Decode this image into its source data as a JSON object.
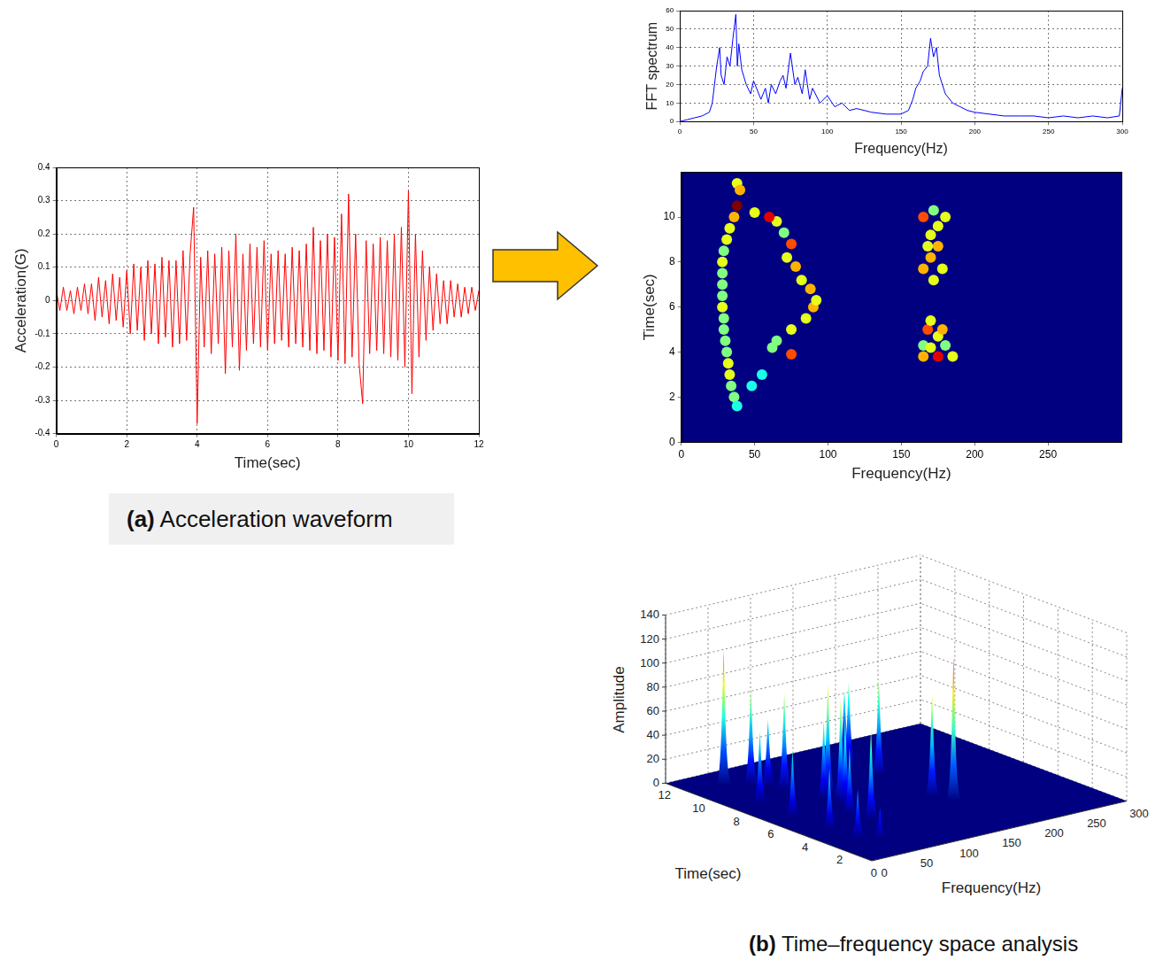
{
  "chart_data": [
    {
      "type": "line",
      "x_label": "Time(sec)",
      "y_label": "Acceleration(G)",
      "color": "#ff0000",
      "grid": true,
      "xlim": [
        0,
        12
      ],
      "xticks": [
        0,
        2,
        4,
        6,
        8,
        10,
        12
      ],
      "ylim": [
        -0.4,
        0.4
      ],
      "yticks": [
        -0.4,
        -0.3,
        -0.2,
        -0.1,
        0,
        0.1,
        0.2,
        0.3,
        0.4
      ],
      "x": [
        0,
        0.1,
        0.2,
        0.3,
        0.4,
        0.5,
        0.6,
        0.7,
        0.8,
        0.9,
        1,
        1.1,
        1.2,
        1.3,
        1.4,
        1.5,
        1.6,
        1.7,
        1.8,
        1.9,
        2,
        2.1,
        2.2,
        2.3,
        2.4,
        2.5,
        2.6,
        2.7,
        2.8,
        2.9,
        3,
        3.1,
        3.2,
        3.3,
        3.4,
        3.5,
        3.6,
        3.7,
        3.8,
        3.9,
        4,
        4.1,
        4.2,
        4.3,
        4.4,
        4.5,
        4.6,
        4.7,
        4.8,
        4.9,
        5,
        5.1,
        5.2,
        5.3,
        5.4,
        5.5,
        5.6,
        5.7,
        5.8,
        5.9,
        6,
        6.1,
        6.2,
        6.3,
        6.4,
        6.5,
        6.6,
        6.7,
        6.8,
        6.9,
        7,
        7.1,
        7.2,
        7.3,
        7.4,
        7.5,
        7.6,
        7.7,
        7.8,
        7.9,
        8,
        8.1,
        8.2,
        8.3,
        8.4,
        8.5,
        8.6,
        8.7,
        8.8,
        8.9,
        9,
        9.1,
        9.2,
        9.3,
        9.4,
        9.5,
        9.6,
        9.7,
        9.8,
        9.9,
        10,
        10.1,
        10.2,
        10.3,
        10.4,
        10.5,
        10.6,
        10.7,
        10.8,
        10.9,
        11,
        11.1,
        11.2,
        11.3,
        11.4,
        11.5,
        11.6,
        11.7,
        11.8,
        11.9,
        12
      ],
      "values": [
        0.03,
        -0.03,
        0.04,
        -0.03,
        0.03,
        -0.04,
        0.04,
        -0.03,
        0.05,
        -0.04,
        0.05,
        -0.06,
        0.07,
        -0.05,
        0.06,
        -0.07,
        0.08,
        -0.06,
        0.07,
        -0.08,
        0.09,
        -0.1,
        0.11,
        -0.09,
        0.1,
        -0.12,
        0.12,
        -0.1,
        0.11,
        -0.13,
        0.13,
        -0.11,
        0.12,
        -0.14,
        0.12,
        -0.13,
        0.15,
        -0.12,
        0.14,
        0.28,
        -0.37,
        0.13,
        -0.14,
        0.15,
        -0.16,
        0.14,
        -0.13,
        0.16,
        -0.22,
        0.15,
        -0.14,
        0.2,
        -0.21,
        0.14,
        -0.15,
        0.17,
        -0.13,
        0.16,
        -0.14,
        0.18,
        -0.15,
        0.14,
        -0.13,
        0.15,
        -0.12,
        0.14,
        -0.14,
        0.16,
        -0.13,
        0.15,
        -0.14,
        0.17,
        -0.15,
        0.22,
        -0.16,
        0.18,
        -0.15,
        0.2,
        -0.17,
        0.19,
        -0.18,
        0.26,
        -0.19,
        0.32,
        -0.17,
        0.2,
        -0.19,
        -0.31,
        0.18,
        -0.16,
        0.17,
        -0.15,
        0.19,
        -0.16,
        0.18,
        -0.17,
        0.2,
        -0.18,
        0.22,
        -0.2,
        0.33,
        -0.28,
        0.2,
        -0.17,
        0.15,
        -0.12,
        0.1,
        -0.09,
        0.08,
        -0.07,
        0.06,
        -0.07,
        0.06,
        -0.05,
        0.05,
        -0.05,
        0.04,
        -0.04,
        0.04,
        -0.03,
        0.03
      ]
    },
    {
      "type": "line",
      "x_label": "Frequency(Hz)",
      "y_label": "FFT spectrum",
      "color": "#0000ff",
      "grid": true,
      "xlim": [
        0,
        300
      ],
      "xticks": [
        0,
        50,
        100,
        150,
        200,
        250,
        300
      ],
      "ylim": [
        0,
        60
      ],
      "yticks": [
        0,
        10,
        20,
        30,
        40,
        50,
        60
      ],
      "x": [
        0,
        5,
        10,
        15,
        20,
        22,
        25,
        27,
        28,
        30,
        32,
        34,
        36,
        38,
        39,
        40,
        42,
        45,
        48,
        50,
        55,
        58,
        60,
        62,
        65,
        68,
        70,
        72,
        75,
        78,
        80,
        83,
        85,
        88,
        90,
        95,
        100,
        105,
        110,
        115,
        120,
        130,
        140,
        150,
        155,
        158,
        160,
        163,
        165,
        168,
        170,
        172,
        174,
        176,
        178,
        180,
        185,
        190,
        195,
        200,
        210,
        220,
        230,
        240,
        250,
        260,
        270,
        280,
        290,
        298,
        300
      ],
      "values": [
        0,
        1,
        2,
        3,
        5,
        10,
        30,
        40,
        25,
        20,
        35,
        30,
        45,
        58,
        30,
        42,
        28,
        20,
        15,
        22,
        12,
        18,
        10,
        20,
        15,
        22,
        25,
        18,
        37,
        20,
        24,
        15,
        28,
        12,
        18,
        10,
        14,
        8,
        10,
        6,
        7,
        5,
        4,
        4,
        6,
        12,
        18,
        22,
        27,
        30,
        45,
        35,
        40,
        25,
        20,
        15,
        10,
        8,
        6,
        5,
        4,
        3,
        3,
        3,
        2,
        3,
        2,
        3,
        2,
        3,
        18
      ]
    },
    {
      "type": "heatmap",
      "x_label": "Frequency(Hz)",
      "y_label": "Time(sec)",
      "grid": false,
      "xlim": [
        0,
        300
      ],
      "xticks": [
        0,
        50,
        100,
        150,
        200,
        250
      ],
      "ylim": [
        0,
        12
      ],
      "yticks": [
        0,
        2,
        4,
        6,
        8,
        10
      ],
      "x": [
        38,
        40,
        38,
        36,
        33,
        31,
        29,
        28,
        28,
        28,
        28,
        28,
        29,
        29,
        30,
        31,
        32,
        33,
        34,
        36,
        38,
        48,
        55,
        75,
        65,
        62,
        75,
        85,
        90,
        92,
        88,
        82,
        78,
        72,
        75,
        70,
        65,
        60,
        50,
        165,
        175,
        185,
        165,
        180,
        170,
        175,
        168,
        178,
        170,
        172,
        165,
        178,
        170,
        168,
        175,
        170,
        175,
        165,
        180,
        172
      ],
      "y": [
        11.5,
        11.2,
        10.5,
        10,
        9.5,
        9,
        8.5,
        8,
        7.5,
        7,
        6.5,
        6,
        5.5,
        5,
        4.5,
        4,
        3.5,
        3,
        2.5,
        2,
        1.6,
        2.5,
        3,
        3.9,
        4.5,
        4.2,
        5,
        5.5,
        6,
        6.3,
        6.8,
        7.2,
        7.8,
        8.2,
        8.8,
        9.3,
        9.8,
        10,
        10.2,
        3.8,
        3.8,
        3.8,
        4.3,
        4.3,
        4.2,
        4.7,
        5,
        5,
        5.4,
        7.2,
        7.7,
        7.7,
        8.2,
        8.7,
        8.7,
        9.2,
        9.6,
        10,
        10,
        10.3
      ],
      "z": [
        6,
        7,
        10,
        7,
        6,
        6,
        5,
        6,
        5,
        5,
        5,
        6,
        5,
        5,
        5,
        5,
        6,
        6,
        5,
        5,
        4,
        4,
        4,
        8,
        5,
        5,
        6,
        6,
        7,
        6,
        7,
        6,
        7,
        6,
        8,
        5,
        6,
        9,
        6,
        7,
        9,
        6,
        5,
        5,
        6,
        6,
        8,
        7,
        6,
        6,
        7,
        6,
        7,
        6,
        7,
        6,
        6,
        8,
        6,
        5
      ]
    },
    {
      "type": "surface",
      "x_label": "Frequency(Hz)",
      "y_label": "Time(sec)",
      "z_label": "Amplitude",
      "grid": true,
      "xlim": [
        0,
        300
      ],
      "xticks": [
        0,
        50,
        100,
        150,
        200,
        250,
        300
      ],
      "ylim": [
        0,
        12
      ],
      "yticks": [
        0,
        2,
        4,
        6,
        8,
        10,
        12
      ],
      "zlim": [
        0,
        140
      ],
      "zticks": [
        0,
        20,
        40,
        60,
        80,
        100,
        120,
        140
      ],
      "peaks": {
        "time": [
          10.5,
          8,
          6,
          4,
          2.5,
          10,
          8.8,
          7,
          6,
          5,
          4,
          9.5,
          3.9,
          4.8,
          8,
          9.5,
          10,
          2,
          6.5,
          7.5
        ],
        "frequency": [
          38,
          30,
          28,
          31,
          34,
          60,
          75,
          85,
          90,
          75,
          80,
          70,
          175,
          168,
          170,
          165,
          170,
          50,
          95,
          100
        ],
        "amplitude": [
          113,
          60,
          55,
          50,
          40,
          80,
          80,
          65,
          70,
          55,
          75,
          55,
          120,
          85,
          80,
          70,
          60,
          25,
          85,
          90
        ]
      }
    }
  ],
  "captions": [
    {
      "label": "(a)",
      "text": "Acceleration waveform"
    },
    {
      "label": "(b)",
      "text": "Time–frequency space analysis"
    }
  ]
}
